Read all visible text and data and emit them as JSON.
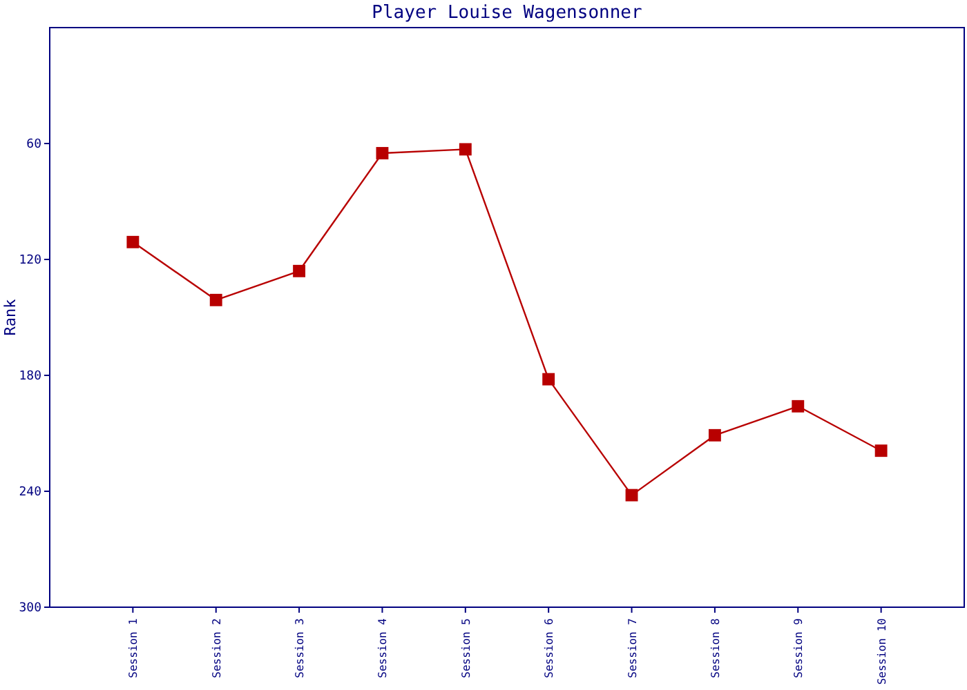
{
  "chart_data": {
    "type": "line",
    "title": "Player Louise Wagensonner",
    "ylabel": "Rank",
    "categories": [
      "Session 1",
      "Session 2",
      "Session 3",
      "Session 4",
      "Session 5",
      "Session 6",
      "Session 7",
      "Session 8",
      "Session 9",
      "Session 10"
    ],
    "series": [
      {
        "color": "#b80000",
        "values": [
          111,
          141,
          126,
          65,
          63,
          182,
          242,
          211,
          196,
          219
        ]
      }
    ],
    "ylim": [
      300,
      0
    ],
    "yticks": [
      60,
      120,
      180,
      240,
      300
    ],
    "marker": "square",
    "grid": false
  }
}
